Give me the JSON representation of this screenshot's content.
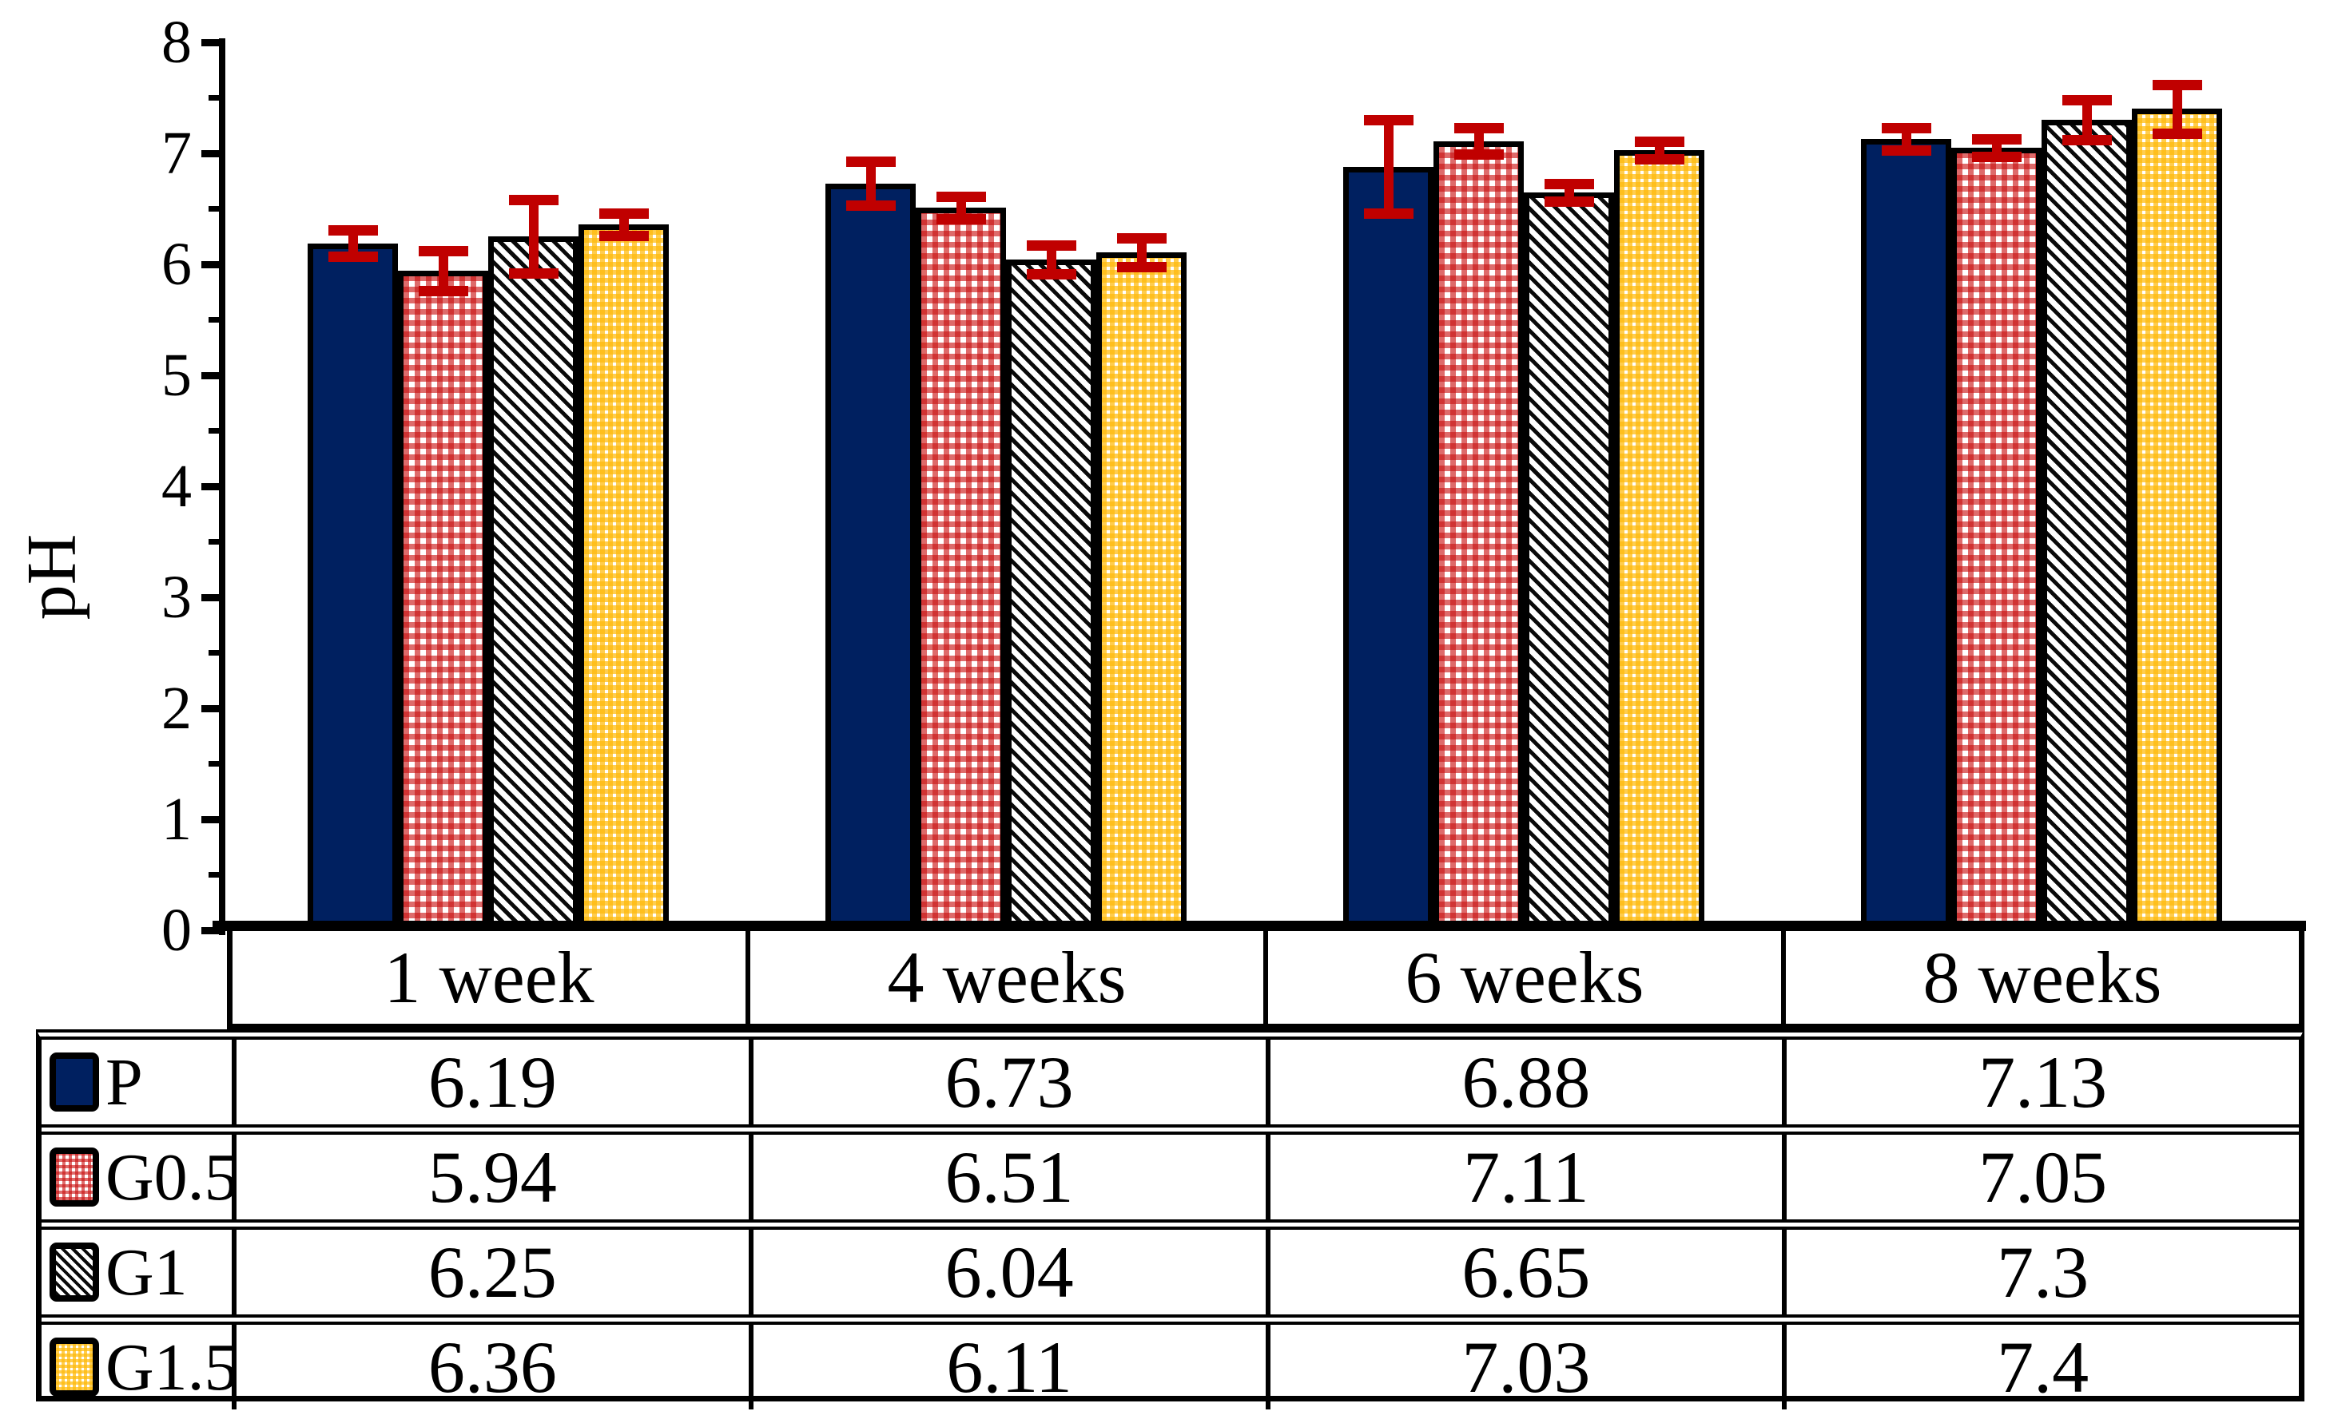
{
  "chart_data": {
    "type": "bar",
    "title": "",
    "xlabel": "",
    "ylabel": "pH",
    "ylim": [
      0,
      8
    ],
    "ytick_major_step": 1,
    "ytick_minor_step": 0.5,
    "ytick_labels": [
      "0",
      "1",
      "2",
      "3",
      "4",
      "5",
      "6",
      "7",
      "8"
    ],
    "grid": false,
    "legend_position": "table-left",
    "categories": [
      "1 week",
      "4 weeks",
      "6 weeks",
      "8 weeks"
    ],
    "series": [
      {
        "name": "P",
        "values": [
          6.19,
          6.73,
          6.88,
          7.13
        ],
        "errors": [
          0.12,
          0.2,
          0.42,
          0.1
        ],
        "pattern": "solid-navy",
        "color": "#002060"
      },
      {
        "name": "G0.5",
        "values": [
          5.94,
          6.51,
          7.11,
          7.05
        ],
        "errors": [
          0.18,
          0.1,
          0.12,
          0.08
        ],
        "pattern": "red-gingham",
        "color": "#C91010"
      },
      {
        "name": "G1",
        "values": [
          6.25,
          6.04,
          6.65,
          7.3
        ],
        "errors": [
          0.33,
          0.13,
          0.08,
          0.18
        ],
        "pattern": "black-diagonal",
        "color": "#0A0A0A"
      },
      {
        "name": "G1.5",
        "values": [
          6.36,
          6.11,
          7.03,
          7.4
        ],
        "errors": [
          0.1,
          0.13,
          0.08,
          0.22
        ],
        "pattern": "yellow-gingham",
        "color": "#FFBA0A"
      }
    ],
    "error_bar_color": "#C00000",
    "bar_outline_color": "#000000",
    "axis_color": "#000000",
    "data_table": {
      "shown_below_chart": true,
      "column_headers": [
        "1 week",
        "4 weeks",
        "6 weeks",
        "8 weeks"
      ],
      "rows": [
        {
          "label": "P",
          "cells": [
            "6.19",
            "6.73",
            "6.88",
            "7.13"
          ]
        },
        {
          "label": "G0.5",
          "cells": [
            "5.94",
            "6.51",
            "7.11",
            "7.05"
          ]
        },
        {
          "label": "G1",
          "cells": [
            "6.25",
            "6.04",
            "6.65",
            "7.3"
          ]
        },
        {
          "label": "G1.5",
          "cells": [
            "6.36",
            "6.11",
            "7.03",
            "7.4"
          ]
        }
      ]
    }
  }
}
